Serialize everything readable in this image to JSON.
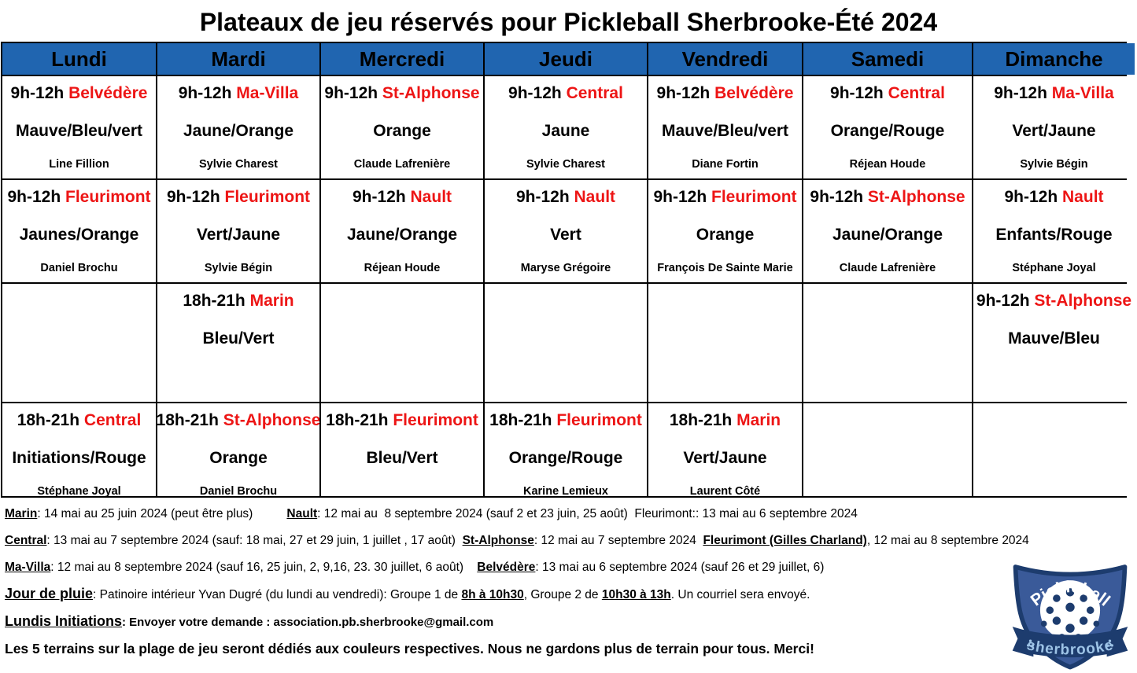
{
  "title": "Plateaux de jeu réservés pour Pickleball Sherbrooke-Été 2024",
  "colors": {
    "header_bg": "#2065b0",
    "location_red": "#ed1515",
    "border": "#000000",
    "logo_shield": "#3a5a99",
    "logo_navy": "#1d3c6e",
    "logo_lightblue": "#9dc3e6"
  },
  "table": {
    "days": [
      "Lundi",
      "Mardi",
      "Mercredi",
      "Jeudi",
      "Vendredi",
      "Samedi",
      "Dimanche"
    ],
    "rows": [
      {
        "cells": [
          {
            "time": "9h-12h",
            "location": "Belvédère",
            "colors": "Mauve/Bleu/vert",
            "person": "Line Fillion"
          },
          {
            "time": "9h-12h",
            "location": "Ma-Villa",
            "colors": "Jaune/Orange",
            "person": "Sylvie Charest"
          },
          {
            "time": "9h-12h",
            "location": "St-Alphonse",
            "colors": "Orange",
            "person": "Claude Lafrenière"
          },
          {
            "time": "9h-12h",
            "location": "Central",
            "colors": "Jaune",
            "person": "Sylvie Charest"
          },
          {
            "time": "9h-12h",
            "location": "Belvédère",
            "colors": "Mauve/Bleu/vert",
            "person": "Diane Fortin"
          },
          {
            "time": "9h-12h",
            "location": "Central",
            "colors": "Orange/Rouge",
            "person": "Réjean Houde"
          },
          {
            "time": "9h-12h",
            "location": "Ma-Villa",
            "colors": "Vert/Jaune",
            "person": "Sylvie Bégin"
          }
        ]
      },
      {
        "cells": [
          {
            "time": "9h-12h",
            "location": "Fleurimont",
            "colors": "Jaunes/Orange",
            "person": "Daniel Brochu"
          },
          {
            "time": "9h-12h",
            "location": "Fleurimont",
            "colors": "Vert/Jaune",
            "person": "Sylvie Bégin"
          },
          {
            "time": "9h-12h",
            "location": "Nault",
            "colors": "Jaune/Orange",
            "person": "Réjean Houde"
          },
          {
            "time": "9h-12h",
            "location": "Nault",
            "colors": "Vert",
            "person": "Maryse Grégoire"
          },
          {
            "time": "9h-12h",
            "location": "Fleurimont",
            "colors": "Orange",
            "person": "François De Sainte Marie"
          },
          {
            "time": "9h-12h",
            "location": "St-Alphonse",
            "colors": "Jaune/Orange",
            "person": "Claude Lafrenière"
          },
          {
            "time": "9h-12h",
            "location": "Nault",
            "colors": "Enfants/Rouge",
            "person": "Stéphane Joyal"
          }
        ]
      },
      {
        "cells": [
          null,
          {
            "time": "18h-21h",
            "location": "Marin",
            "colors": "Bleu/Vert",
            "person": ""
          },
          null,
          null,
          null,
          null,
          {
            "time": "9h-12h",
            "location": "St-Alphonse",
            "colors": "Mauve/Bleu",
            "person": ""
          }
        ]
      },
      {
        "cells": [
          {
            "time": "18h-21h",
            "location": "Central",
            "colors": "Initiations/Rouge",
            "person": "Stéphane Joyal"
          },
          {
            "time": "18h-21h",
            "location": "St-Alphonse",
            "colors": "Orange",
            "person": "Daniel Brochu"
          },
          {
            "time": "18h-21h",
            "location": "Fleurimont",
            "colors": "Bleu/Vert",
            "person": ""
          },
          {
            "time": "18h-21h",
            "location": "Fleurimont",
            "colors": "Orange/Rouge",
            "person": "Karine Lemieux"
          },
          {
            "time": "18h-21h",
            "location": "Marin",
            "colors": "Vert/Jaune",
            "person": "Laurent Côté"
          },
          null,
          null
        ]
      }
    ]
  },
  "notes": [
    [
      {
        "text": "Marin",
        "style": "lbl"
      },
      {
        "text": ": 14 mai au 25 juin 2024 (peut être plus)          ",
        "style": "txt"
      },
      {
        "text": "Nault",
        "style": "lbl"
      },
      {
        "text": ": 12 mai au  8 septembre 2024 (sauf 2 et 23 juin, 25 août)  Fleurimont:: 13 mai au 6 septembre 2024",
        "style": "txt"
      }
    ],
    [
      {
        "text": "Central",
        "style": "lbl"
      },
      {
        "text": ": 13 mai au 7 septembre 2024 (sauf: 18 mai, 27 et 29 juin, 1 juillet , 17 août)  ",
        "style": "txt"
      },
      {
        "text": "St-Alphonse",
        "style": "lbl"
      },
      {
        "text": ": 12 mai au 7 septembre 2024  ",
        "style": "txt"
      },
      {
        "text": "Fleurimont (Gilles Charland)",
        "style": "lbl"
      },
      {
        "text": ", 12 mai au 8 septembre 2024",
        "style": "txt"
      }
    ],
    [
      {
        "text": "Ma-Villa",
        "style": "lbl"
      },
      {
        "text": ": 12 mai au 8 septembre 2024 (sauf 16, 25 juin, 2, 9,16, 23. 30 juillet, 6 août)    ",
        "style": "txt"
      },
      {
        "text": "Belvédère",
        "style": "lbl"
      },
      {
        "text": ": 13 mai au 6 septembre 2024 (sauf 26 et 29 juillet, 6)",
        "style": "txt"
      }
    ],
    [
      {
        "text": "Jour de pluie",
        "style": "biglbl"
      },
      {
        "text": ": Patinoire intérieur Yvan Dugré (du lundi au vendredi): Groupe 1 de ",
        "style": "txt"
      },
      {
        "text": "8h à 10h30",
        "style": "lbl"
      },
      {
        "text": ", Groupe 2 de ",
        "style": "txt"
      },
      {
        "text": "10h30 à 13h",
        "style": "lbl"
      },
      {
        "text": ". Un courriel sera envoyé.",
        "style": "txt"
      }
    ],
    [
      {
        "text": "Lundis Initiations",
        "style": "biglbl"
      },
      {
        "text": ": Envoyer votre demande : association.pb.sherbrooke@gmail.com",
        "style": "boldsm"
      }
    ],
    [
      {
        "text": "Les 5 terrains sur la plage de jeu seront dédiés aux couleurs respectives. Nous ne gardons plus de terrain pour tous. Merci!",
        "style": "bigbold"
      }
    ]
  ],
  "logo": {
    "top_text": "Pickleball",
    "banner_text": "sherbrooke"
  }
}
